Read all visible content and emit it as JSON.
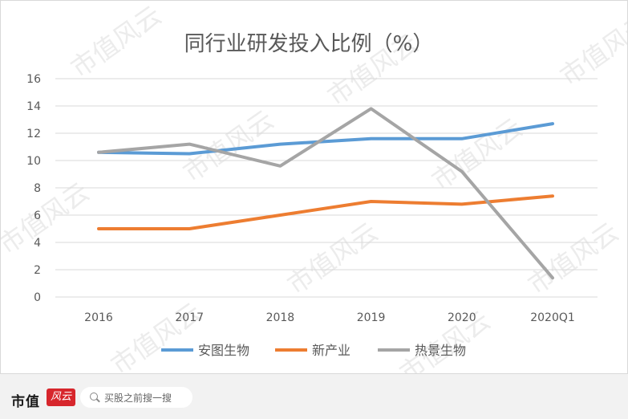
{
  "chart_data": {
    "type": "line",
    "title": "同行业研发投入比例（%）",
    "categories": [
      "2016",
      "2017",
      "2018",
      "2019",
      "2020",
      "2020Q1"
    ],
    "ylim": [
      0,
      16
    ],
    "yticks": [
      0,
      2,
      4,
      6,
      8,
      10,
      12,
      14,
      16
    ],
    "grid": true,
    "legend": "bottom",
    "series": [
      {
        "name": "安图生物",
        "color": "#5b9bd5",
        "values": [
          10.6,
          10.5,
          11.2,
          11.6,
          11.6,
          12.7
        ]
      },
      {
        "name": "新产业",
        "color": "#ed7d31",
        "values": [
          5.0,
          5.0,
          6.0,
          7.0,
          6.8,
          7.4
        ]
      },
      {
        "name": "热景生物",
        "color": "#a5a5a5",
        "values": [
          10.6,
          11.2,
          9.6,
          13.8,
          9.2,
          1.4
        ]
      }
    ]
  },
  "watermark": "市值风云",
  "footer": {
    "logo": "市值",
    "logo_mark": "风云",
    "search_placeholder": "买股之前搜一搜",
    "search_icon": "search-icon"
  }
}
